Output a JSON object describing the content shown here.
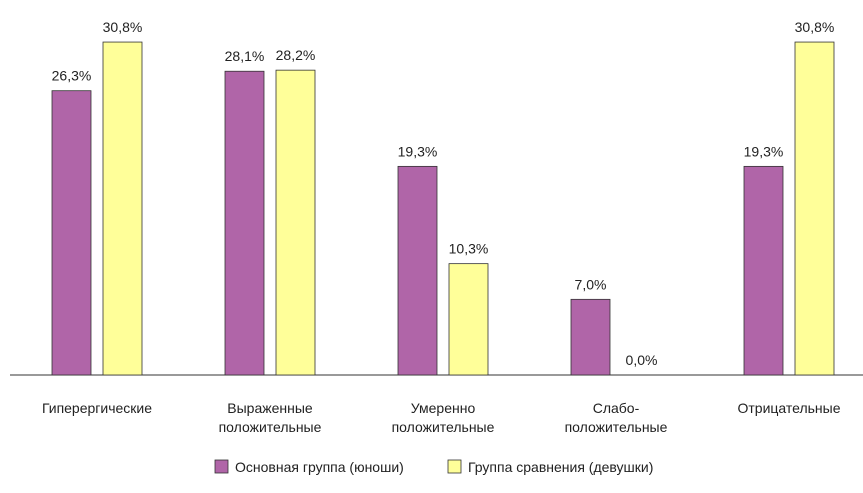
{
  "chart_data": {
    "type": "bar",
    "categories": [
      "Гиперергические",
      "Выраженные\nположительные",
      "Умеренно\nположительные",
      "Слабо-\nположительные",
      "Отрицательные"
    ],
    "series": [
      {
        "name": "Основная группа (юноши)",
        "color": "#b065a8",
        "values": [
          26.3,
          28.1,
          19.3,
          7.0,
          19.3
        ],
        "value_labels": [
          "26,3%",
          "28,1%",
          "19,3%",
          "7,0%",
          "19,3%"
        ]
      },
      {
        "name": "Группа сравнения (девушки)",
        "color": "#ffff99",
        "values": [
          30.8,
          28.2,
          10.3,
          0.0,
          30.8
        ],
        "value_labels": [
          "30,8%",
          "28,2%",
          "10,3%",
          "0,0%",
          "30,8%"
        ]
      }
    ],
    "legend": "bottom"
  }
}
